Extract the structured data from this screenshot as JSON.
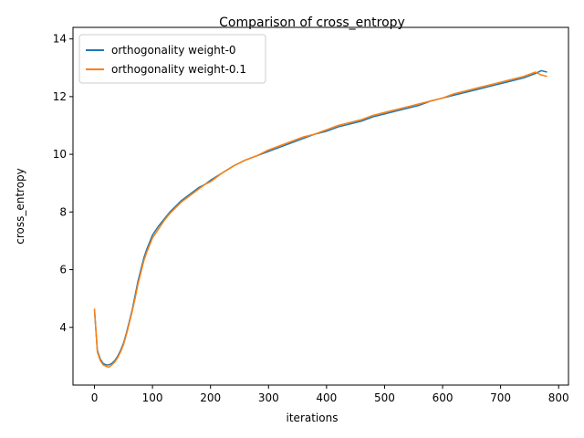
{
  "chart_data": {
    "type": "line",
    "title": "Comparison of cross_entropy",
    "xlabel": "iterations",
    "ylabel": "cross_entropy",
    "xlim": [
      -37,
      817
    ],
    "ylim": [
      2.0,
      14.4
    ],
    "xticks": [
      0,
      100,
      200,
      300,
      400,
      500,
      600,
      700,
      800
    ],
    "yticks": [
      4,
      6,
      8,
      10,
      12,
      14
    ],
    "grid": false,
    "legend_position": "top-left",
    "series": [
      {
        "name": "orthogonality weight-0",
        "color": "#1f77b4",
        "x": [
          0,
          5,
          10,
          15,
          20,
          25,
          30,
          35,
          40,
          45,
          50,
          55,
          60,
          65,
          70,
          75,
          80,
          85,
          90,
          95,
          100,
          110,
          120,
          130,
          140,
          150,
          160,
          170,
          180,
          190,
          200,
          220,
          240,
          260,
          280,
          300,
          320,
          340,
          360,
          380,
          400,
          420,
          440,
          460,
          480,
          500,
          520,
          540,
          560,
          580,
          600,
          620,
          640,
          660,
          680,
          700,
          720,
          740,
          760,
          770,
          780
        ],
        "y": [
          4.6,
          3.2,
          2.9,
          2.75,
          2.7,
          2.7,
          2.75,
          2.85,
          3.0,
          3.2,
          3.45,
          3.8,
          4.2,
          4.6,
          5.1,
          5.6,
          6.0,
          6.4,
          6.7,
          6.95,
          7.2,
          7.5,
          7.75,
          8.0,
          8.2,
          8.4,
          8.55,
          8.7,
          8.85,
          8.95,
          9.1,
          9.35,
          9.6,
          9.8,
          9.95,
          10.1,
          10.25,
          10.4,
          10.55,
          10.7,
          10.8,
          10.95,
          11.05,
          11.15,
          11.3,
          11.4,
          11.5,
          11.6,
          11.7,
          11.85,
          11.95,
          12.05,
          12.15,
          12.25,
          12.35,
          12.45,
          12.55,
          12.65,
          12.8,
          12.9,
          12.85
        ]
      },
      {
        "name": "orthogonality weight-0.1",
        "color": "#ff7f0e",
        "x": [
          0,
          5,
          10,
          15,
          20,
          25,
          30,
          35,
          40,
          45,
          50,
          55,
          60,
          65,
          70,
          75,
          80,
          85,
          90,
          95,
          100,
          110,
          120,
          130,
          140,
          150,
          160,
          170,
          180,
          190,
          200,
          220,
          240,
          260,
          280,
          300,
          320,
          340,
          360,
          380,
          400,
          420,
          440,
          460,
          480,
          500,
          520,
          540,
          560,
          580,
          600,
          620,
          640,
          660,
          680,
          700,
          720,
          740,
          760,
          770,
          780
        ],
        "y": [
          4.65,
          3.15,
          2.85,
          2.7,
          2.65,
          2.62,
          2.7,
          2.8,
          2.95,
          3.15,
          3.4,
          3.75,
          4.15,
          4.55,
          5.0,
          5.5,
          5.9,
          6.3,
          6.6,
          6.85,
          7.1,
          7.4,
          7.7,
          7.95,
          8.15,
          8.35,
          8.5,
          8.65,
          8.8,
          8.95,
          9.05,
          9.35,
          9.6,
          9.8,
          9.95,
          10.15,
          10.3,
          10.45,
          10.6,
          10.7,
          10.85,
          11.0,
          11.1,
          11.2,
          11.35,
          11.45,
          11.55,
          11.65,
          11.75,
          11.85,
          11.95,
          12.1,
          12.2,
          12.3,
          12.4,
          12.5,
          12.6,
          12.7,
          12.85,
          12.75,
          12.7
        ]
      }
    ]
  }
}
